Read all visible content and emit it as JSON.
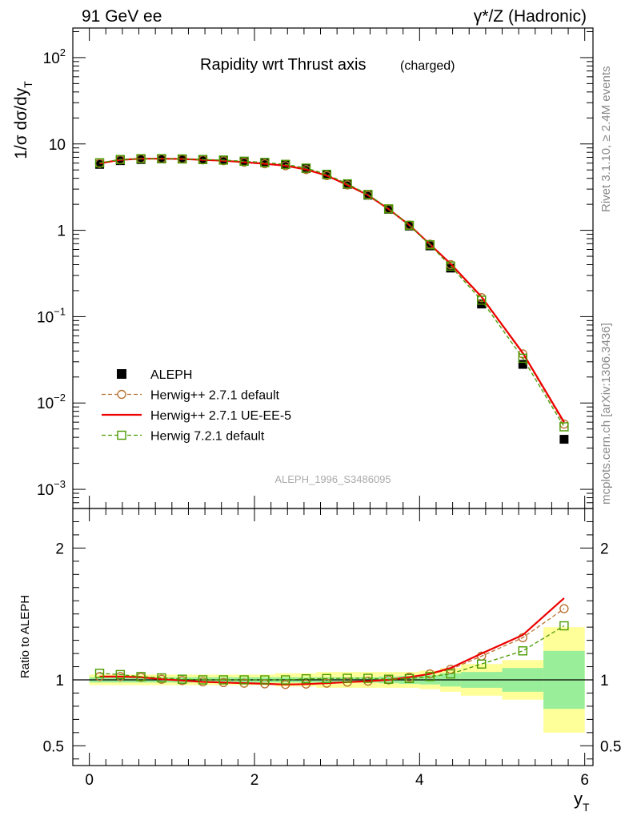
{
  "header": {
    "left": "91 GeV ee",
    "right": "γ*/Z (Hadronic)"
  },
  "side_labels": {
    "rivet": "Rivet 3.1.10, ≥ 2.4M events",
    "mcplots": "mcplots.cern.ch [arXiv:1306.3436]"
  },
  "chart_data": [
    {
      "type": "scatter",
      "panel": "main",
      "title": "Rapidity wrt Thrust axis",
      "title_suffix": "(charged)",
      "ylabel": "1/σ dσ/dy",
      "ylabel_sub": "T",
      "yscale": "log",
      "ylim": [
        0.0006,
        220
      ],
      "xlim": [
        -0.2,
        6.1
      ],
      "y_ticks": [
        {
          "value": 100,
          "label": "10",
          "exp": "2"
        },
        {
          "value": 10,
          "label": "10",
          "exp": ""
        },
        {
          "value": 1,
          "label": "1",
          "exp": ""
        },
        {
          "value": 0.1,
          "label": "10",
          "exp": "−1"
        },
        {
          "value": 0.01,
          "label": "10",
          "exp": "−2"
        },
        {
          "value": 0.001,
          "label": "10",
          "exp": "−3"
        }
      ],
      "watermark": "ALEPH_1996_S3486095",
      "legend_position": "lower-left",
      "x": [
        0.125,
        0.375,
        0.625,
        0.875,
        1.125,
        1.375,
        1.625,
        1.875,
        2.125,
        2.375,
        2.625,
        2.875,
        3.125,
        3.375,
        3.625,
        3.875,
        4.125,
        4.375,
        4.75,
        5.25,
        5.75
      ],
      "series": [
        {
          "name": "ALEPH",
          "color": "#000000",
          "marker": "filled-square",
          "values": [
            5.8,
            6.4,
            6.6,
            6.7,
            6.7,
            6.6,
            6.5,
            6.3,
            6.1,
            5.8,
            5.2,
            4.4,
            3.4,
            2.55,
            1.75,
            1.12,
            0.66,
            0.365,
            0.14,
            0.028,
            0.0038
          ]
        },
        {
          "name": "Herwig++ 2.7.1 default",
          "color": "#b87333",
          "marker": "open-circle",
          "dash": "dashed",
          "values": [
            5.95,
            6.55,
            6.75,
            6.75,
            6.7,
            6.55,
            6.4,
            6.15,
            5.9,
            5.6,
            5.05,
            4.3,
            3.35,
            2.55,
            1.76,
            1.15,
            0.69,
            0.4,
            0.166,
            0.037,
            0.0057
          ]
        },
        {
          "name": "Herwig++ 2.7.1 UE-EE-5",
          "color": "#ee0000",
          "marker": "none",
          "dash": "solid",
          "values": [
            5.95,
            6.55,
            6.75,
            6.75,
            6.7,
            6.55,
            6.4,
            6.15,
            5.9,
            5.6,
            5.05,
            4.3,
            3.35,
            2.55,
            1.76,
            1.15,
            0.69,
            0.41,
            0.17,
            0.038,
            0.006
          ]
        },
        {
          "name": "Herwig 7.2.1 default",
          "color": "#4a9a00",
          "marker": "open-square",
          "dash": "dashed",
          "values": [
            6.05,
            6.6,
            6.75,
            6.75,
            6.7,
            6.6,
            6.5,
            6.3,
            6.1,
            5.8,
            5.25,
            4.45,
            3.45,
            2.6,
            1.77,
            1.14,
            0.68,
            0.385,
            0.155,
            0.033,
            0.0053
          ]
        }
      ]
    },
    {
      "type": "line",
      "panel": "ratio",
      "ylabel": "Ratio to ALEPH",
      "xlabel": "y",
      "xlabel_sub": "T",
      "ylim": [
        0.35,
        2.3
      ],
      "xlim": [
        -0.2,
        6.1
      ],
      "y_ticks": [
        2,
        1,
        0.5
      ],
      "x_ticks": [
        0,
        2,
        4,
        6
      ],
      "bands": {
        "edges": [
          0,
          0.25,
          0.5,
          0.75,
          1.0,
          1.25,
          1.5,
          1.75,
          2.0,
          2.25,
          2.5,
          2.75,
          3.0,
          3.25,
          3.5,
          3.75,
          4.0,
          4.25,
          4.5,
          5.0,
          5.5,
          6.0
        ],
        "stat_half": [
          0.02,
          0.02,
          0.02,
          0.02,
          0.02,
          0.02,
          0.02,
          0.02,
          0.02,
          0.02,
          0.02,
          0.02,
          0.02,
          0.02,
          0.025,
          0.03,
          0.035,
          0.05,
          0.06,
          0.09,
          0.22
        ],
        "total_half": [
          0.04,
          0.04,
          0.04,
          0.04,
          0.04,
          0.04,
          0.04,
          0.04,
          0.04,
          0.05,
          0.05,
          0.06,
          0.06,
          0.06,
          0.06,
          0.06,
          0.07,
          0.09,
          0.12,
          0.15,
          0.4
        ],
        "stat_color": "#99ee99",
        "total_color": "#ffff99"
      },
      "x": [
        0.125,
        0.375,
        0.625,
        0.875,
        1.125,
        1.375,
        1.625,
        1.875,
        2.125,
        2.375,
        2.625,
        2.875,
        3.125,
        3.375,
        3.625,
        3.875,
        4.125,
        4.375,
        4.75,
        5.25,
        5.75
      ],
      "series": [
        {
          "name": "Herwig++ 2.7.1 default",
          "color": "#b87333",
          "marker": "open-circle",
          "dash": "dashed",
          "values": [
            1.025,
            1.025,
            1.02,
            1.005,
            0.995,
            0.985,
            0.98,
            0.975,
            0.97,
            0.965,
            0.968,
            0.975,
            0.983,
            0.99,
            1.0,
            1.02,
            1.045,
            1.08,
            1.18,
            1.32,
            1.54
          ]
        },
        {
          "name": "Herwig++ 2.7.1 UE-EE-5",
          "color": "#ee0000",
          "marker": "none",
          "dash": "solid",
          "values": [
            1.025,
            1.025,
            1.02,
            1.005,
            0.995,
            0.985,
            0.98,
            0.975,
            0.97,
            0.965,
            0.968,
            0.975,
            0.983,
            0.99,
            1.0,
            1.02,
            1.045,
            1.09,
            1.2,
            1.34,
            1.62
          ]
        },
        {
          "name": "Herwig 7.2.1 default",
          "color": "#4a9a00",
          "marker": "open-square",
          "dash": "dashed",
          "values": [
            1.05,
            1.04,
            1.025,
            1.015,
            1.005,
            1.0,
            1.0,
            1.0,
            1.0,
            1.0,
            1.008,
            1.01,
            1.012,
            1.012,
            1.005,
            1.01,
            1.025,
            1.045,
            1.12,
            1.22,
            1.41
          ]
        }
      ]
    }
  ]
}
